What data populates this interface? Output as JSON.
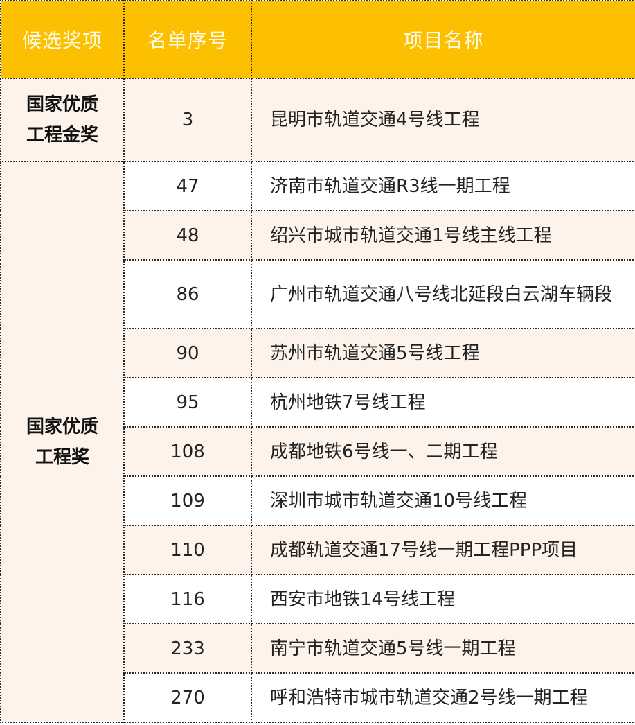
{
  "header": {
    "col1": "候选奖项",
    "col2": "名单序号",
    "col3": "项目名称"
  },
  "colors": {
    "header_bg": "#fcc000",
    "row_beige": "#fdf3ea",
    "row_white": "#ffffff"
  },
  "groups": [
    {
      "award": "国家优质工程金奖",
      "award_line1": "国家优质",
      "award_line2": "工程金奖",
      "rows": [
        {
          "num": "3",
          "name": "昆明市轨道交通4号线工程"
        }
      ]
    },
    {
      "award": "国家优质工程奖",
      "award_line1": "国家优质",
      "award_line2": "工程奖",
      "rows": [
        {
          "num": "47",
          "name": "济南市轨道交通R3线一期工程"
        },
        {
          "num": "48",
          "name": "绍兴市城市轨道交通1号线主线工程"
        },
        {
          "num": "86",
          "name": "广州市轨道交通八号线北延段白云湖车辆段"
        },
        {
          "num": "90",
          "name": "苏州市轨道交通5号线工程"
        },
        {
          "num": "95",
          "name": "杭州地铁7号线工程"
        },
        {
          "num": "108",
          "name": "成都地铁6号线一、二期工程"
        },
        {
          "num": "109",
          "name": "深圳市城市轨道交通10号线工程"
        },
        {
          "num": "110",
          "name": "成都轨道交通17号线一期工程PPP项目"
        },
        {
          "num": "116",
          "name": "西安市地铁14号线工程"
        },
        {
          "num": "233",
          "name": "南宁市轨道交通5号线一期工程"
        },
        {
          "num": "270",
          "name": "呼和浩特市城市轨道交通2号线一期工程"
        }
      ]
    }
  ]
}
